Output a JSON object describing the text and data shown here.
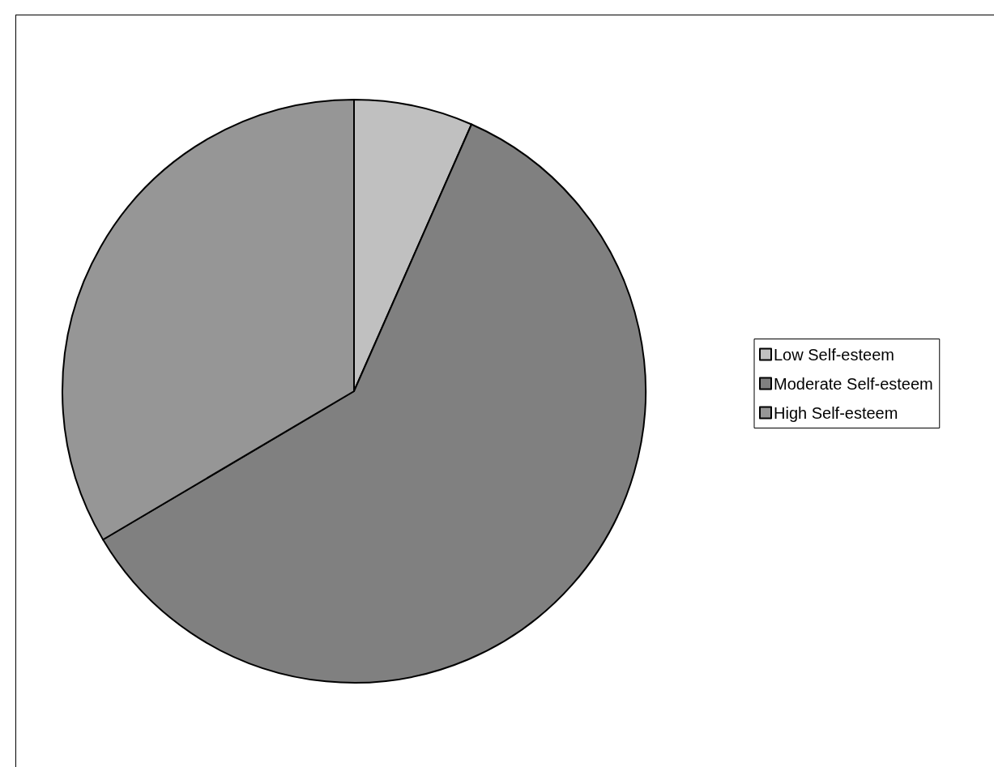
{
  "chart_data": {
    "type": "pie",
    "categories": [
      "Low Self-esteem",
      "Moderate Self-esteem",
      "High Self-esteem"
    ],
    "values": [
      6.6,
      59.9,
      33.5
    ],
    "colors": [
      "#c0c0c0",
      "#808080",
      "#969696"
    ],
    "legend": "right"
  }
}
